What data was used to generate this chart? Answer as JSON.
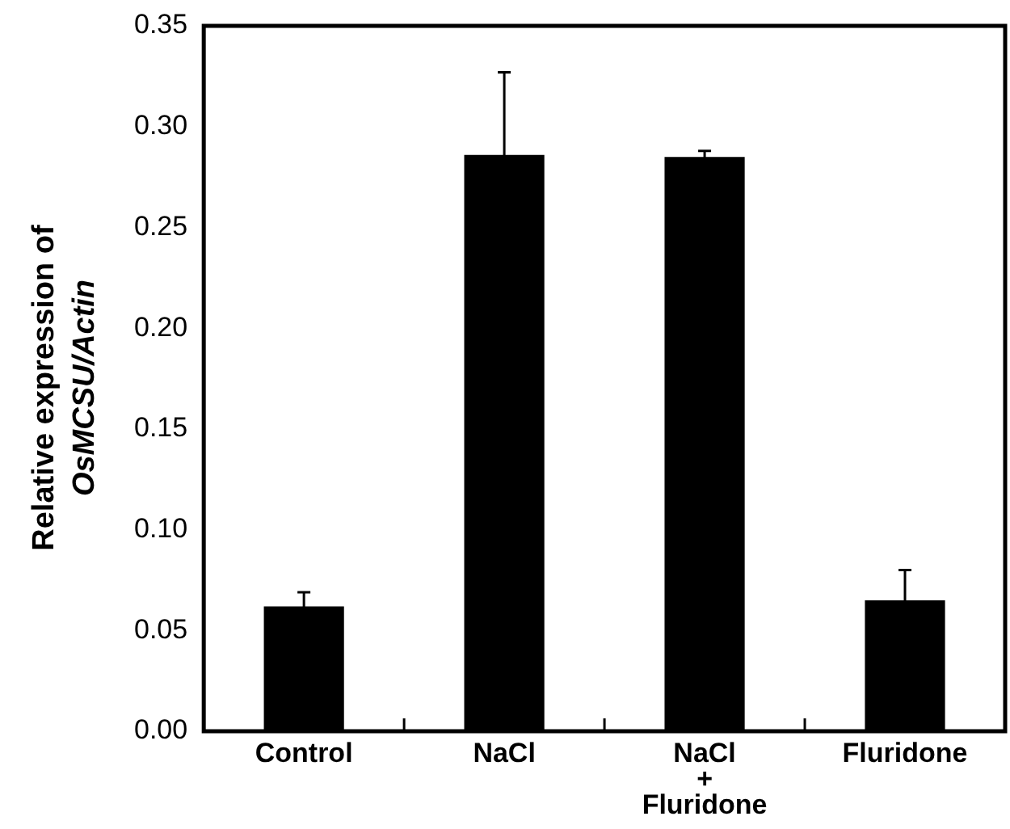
{
  "chart_data": {
    "type": "bar",
    "ylabel": "Relative expression of\nOsMCSU/Actin",
    "categories": [
      "Control",
      "NaCl",
      "NaCl\n+\nFluridone",
      "Fluridone"
    ],
    "values": [
      0.062,
      0.286,
      0.285,
      0.065
    ],
    "errors": [
      0.007,
      0.041,
      0.003,
      0.015
    ],
    "color": "#000000",
    "ylim": [
      0,
      0.35
    ],
    "yticks": [
      {
        "value": 0,
        "label": "0.00"
      },
      0.05,
      {
        "value": 0.1,
        "label": "0.10"
      },
      0.15,
      {
        "value": 0.2,
        "label": "0.20"
      },
      0.25,
      {
        "value": 0.3,
        "label": "0.30"
      },
      0.35
    ],
    "grid": false,
    "legend": false
  }
}
